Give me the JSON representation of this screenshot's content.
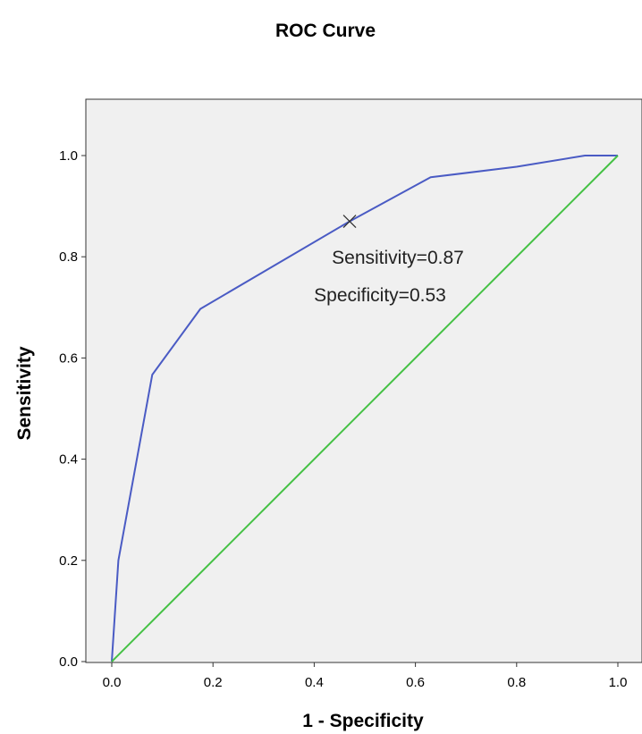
{
  "chart_data": {
    "type": "line",
    "title": "ROC Curve",
    "xlabel": "1 - Specificity",
    "ylabel": "Sensitivity",
    "xlim": [
      0.0,
      1.0
    ],
    "ylim": [
      0.0,
      1.0
    ],
    "x_ticks": [
      "0.0",
      "0.2",
      "0.4",
      "0.6",
      "0.8",
      "1.0"
    ],
    "y_ticks": [
      "0.0",
      "0.2",
      "0.4",
      "0.6",
      "0.8",
      "1.0"
    ],
    "plot_background": "#f0f0f0",
    "series": [
      {
        "color": "#4a5bc4",
        "x": [
          0.0,
          0.013,
          0.08,
          0.175,
          0.47,
          0.63,
          0.8,
          0.935,
          1.0
        ],
        "y": [
          0.0,
          0.2,
          0.567,
          0.697,
          0.87,
          0.957,
          0.978,
          1.0,
          1.0
        ]
      },
      {
        "color": "#44c144",
        "x": [
          0.0,
          1.0
        ],
        "y": [
          0.0,
          1.0
        ]
      }
    ],
    "marker": {
      "x": 0.47,
      "y": 0.87,
      "symbol": "x"
    },
    "annotations": [
      "Sensitivity=0.87",
      "Specificity=0.53"
    ]
  }
}
